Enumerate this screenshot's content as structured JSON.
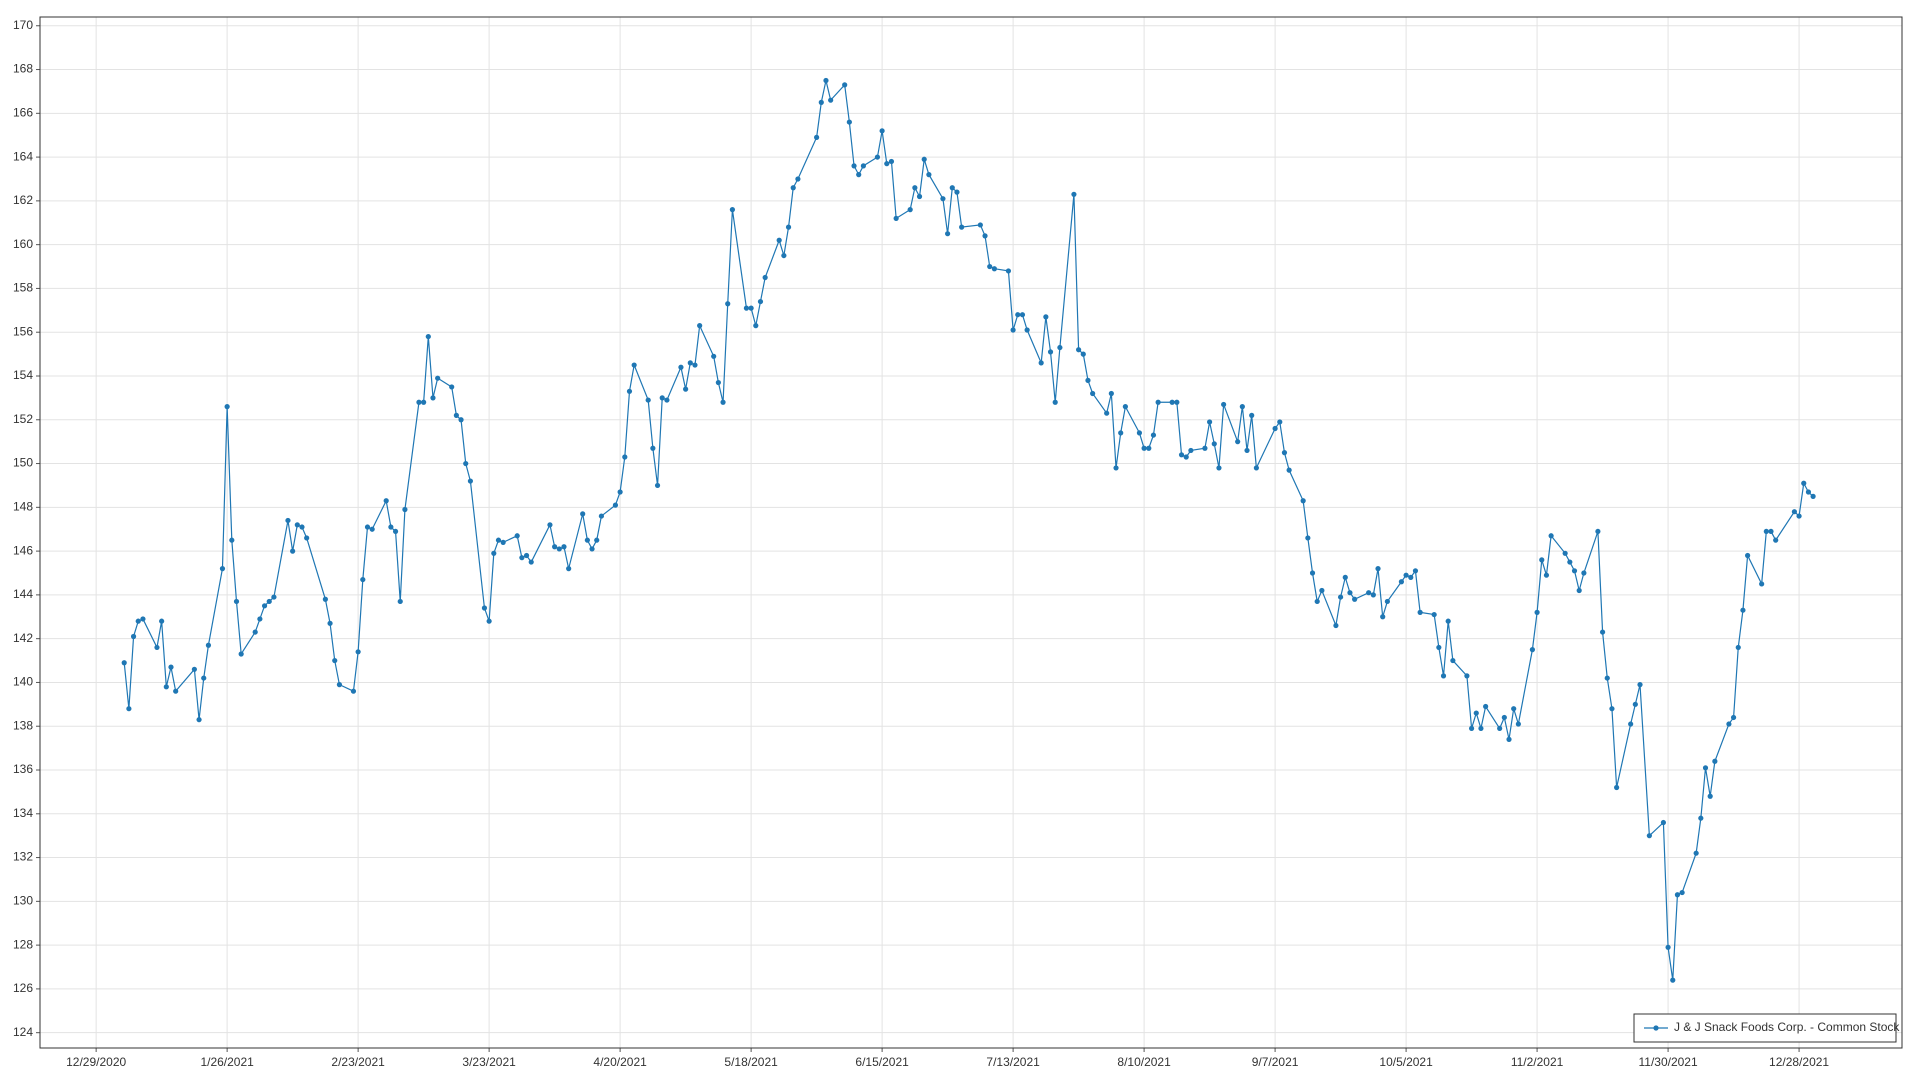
{
  "chart_data": {
    "type": "line",
    "x": [
      "1/4/2021",
      "1/5/2021",
      "1/6/2021",
      "1/7/2021",
      "1/8/2021",
      "1/11/2021",
      "1/12/2021",
      "1/13/2021",
      "1/14/2021",
      "1/15/2021",
      "1/19/2021",
      "1/20/2021",
      "1/21/2021",
      "1/22/2021",
      "1/25/2021",
      "1/26/2021",
      "1/27/2021",
      "1/28/2021",
      "1/29/2021",
      "2/1/2021",
      "2/2/2021",
      "2/3/2021",
      "2/4/2021",
      "2/5/2021",
      "2/8/2021",
      "2/9/2021",
      "2/10/2021",
      "2/11/2021",
      "2/12/2021",
      "2/16/2021",
      "2/17/2021",
      "2/18/2021",
      "2/19/2021",
      "2/22/2021",
      "2/23/2021",
      "2/24/2021",
      "2/25/2021",
      "2/26/2021",
      "3/1/2021",
      "3/2/2021",
      "3/3/2021",
      "3/4/2021",
      "3/5/2021",
      "3/8/2021",
      "3/9/2021",
      "3/10/2021",
      "3/11/2021",
      "3/12/2021",
      "3/15/2021",
      "3/16/2021",
      "3/17/2021",
      "3/18/2021",
      "3/19/2021",
      "3/22/2021",
      "3/23/2021",
      "3/24/2021",
      "3/25/2021",
      "3/26/2021",
      "3/29/2021",
      "3/30/2021",
      "3/31/2021",
      "4/1/2021",
      "4/5/2021",
      "4/6/2021",
      "4/7/2021",
      "4/8/2021",
      "4/9/2021",
      "4/12/2021",
      "4/13/2021",
      "4/14/2021",
      "4/15/2021",
      "4/16/2021",
      "4/19/2021",
      "4/20/2021",
      "4/21/2021",
      "4/22/2021",
      "4/23/2021",
      "4/26/2021",
      "4/27/2021",
      "4/28/2021",
      "4/29/2021",
      "4/30/2021",
      "5/3/2021",
      "5/4/2021",
      "5/5/2021",
      "5/6/2021",
      "5/7/2021",
      "5/10/2021",
      "5/11/2021",
      "5/12/2021",
      "5/13/2021",
      "5/14/2021",
      "5/17/2021",
      "5/18/2021",
      "5/19/2021",
      "5/20/2021",
      "5/21/2021",
      "5/24/2021",
      "5/25/2021",
      "5/26/2021",
      "5/27/2021",
      "5/28/2021",
      "6/1/2021",
      "6/2/2021",
      "6/3/2021",
      "6/4/2021",
      "6/7/2021",
      "6/8/2021",
      "6/9/2021",
      "6/10/2021",
      "6/11/2021",
      "6/14/2021",
      "6/15/2021",
      "6/16/2021",
      "6/17/2021",
      "6/18/2021",
      "6/21/2021",
      "6/22/2021",
      "6/23/2021",
      "6/24/2021",
      "6/25/2021",
      "6/28/2021",
      "6/29/2021",
      "6/30/2021",
      "7/1/2021",
      "7/2/2021",
      "7/6/2021",
      "7/7/2021",
      "7/8/2021",
      "7/9/2021",
      "7/12/2021",
      "7/13/2021",
      "7/14/2021",
      "7/15/2021",
      "7/16/2021",
      "7/19/2021",
      "7/20/2021",
      "7/21/2021",
      "7/22/2021",
      "7/23/2021",
      "7/26/2021",
      "7/27/2021",
      "7/28/2021",
      "7/29/2021",
      "7/30/2021",
      "8/2/2021",
      "8/3/2021",
      "8/4/2021",
      "8/5/2021",
      "8/6/2021",
      "8/9/2021",
      "8/10/2021",
      "8/11/2021",
      "8/12/2021",
      "8/13/2021",
      "8/16/2021",
      "8/17/2021",
      "8/18/2021",
      "8/19/2021",
      "8/20/2021",
      "8/23/2021",
      "8/24/2021",
      "8/25/2021",
      "8/26/2021",
      "8/27/2021",
      "8/30/2021",
      "8/31/2021",
      "9/1/2021",
      "9/2/2021",
      "9/3/2021",
      "9/7/2021",
      "9/8/2021",
      "9/9/2021",
      "9/10/2021",
      "9/13/2021",
      "9/14/2021",
      "9/15/2021",
      "9/16/2021",
      "9/17/2021",
      "9/20/2021",
      "9/21/2021",
      "9/22/2021",
      "9/23/2021",
      "9/24/2021",
      "9/27/2021",
      "9/28/2021",
      "9/29/2021",
      "9/30/2021",
      "10/1/2021",
      "10/4/2021",
      "10/5/2021",
      "10/6/2021",
      "10/7/2021",
      "10/8/2021",
      "10/11/2021",
      "10/12/2021",
      "10/13/2021",
      "10/14/2021",
      "10/15/2021",
      "10/18/2021",
      "10/19/2021",
      "10/20/2021",
      "10/21/2021",
      "10/22/2021",
      "10/25/2021",
      "10/26/2021",
      "10/27/2021",
      "10/28/2021",
      "10/29/2021",
      "11/1/2021",
      "11/2/2021",
      "11/3/2021",
      "11/4/2021",
      "11/5/2021",
      "11/8/2021",
      "11/9/2021",
      "11/10/2021",
      "11/11/2021",
      "11/12/2021",
      "11/15/2021",
      "11/16/2021",
      "11/17/2021",
      "11/18/2021",
      "11/19/2021",
      "11/22/2021",
      "11/23/2021",
      "11/24/2021",
      "11/26/2021",
      "11/29/2021",
      "11/30/2021",
      "12/1/2021",
      "12/2/2021",
      "12/3/2021",
      "12/6/2021",
      "12/7/2021",
      "12/8/2021",
      "12/9/2021",
      "12/10/2021",
      "12/13/2021",
      "12/14/2021",
      "12/15/2021",
      "12/16/2021",
      "12/17/2021",
      "12/20/2021",
      "12/21/2021",
      "12/22/2021",
      "12/23/2021",
      "12/27/2021",
      "12/28/2021",
      "12/29/2021",
      "12/30/2021",
      "12/31/2021"
    ],
    "series": [
      {
        "name": "J & J Snack Foods Corp. - Common Stock",
        "color": "#1f77b4",
        "values": [
          140.9,
          138.8,
          142.1,
          142.8,
          142.9,
          141.6,
          142.8,
          139.8,
          140.7,
          139.6,
          140.6,
          138.3,
          140.2,
          141.7,
          145.2,
          152.6,
          146.5,
          143.7,
          141.3,
          142.3,
          142.9,
          143.5,
          143.7,
          143.9,
          147.4,
          146.0,
          147.2,
          147.1,
          146.6,
          143.8,
          142.7,
          141.0,
          139.9,
          139.6,
          141.4,
          144.7,
          147.1,
          147.0,
          148.3,
          147.1,
          146.9,
          143.7,
          147.9,
          152.8,
          152.8,
          155.8,
          153.0,
          153.9,
          153.5,
          152.2,
          152.0,
          150.0,
          149.2,
          143.4,
          142.8,
          145.9,
          146.5,
          146.4,
          146.7,
          145.7,
          145.8,
          145.5,
          147.2,
          146.2,
          146.1,
          146.2,
          145.2,
          147.7,
          146.5,
          146.1,
          146.5,
          147.6,
          148.1,
          148.7,
          150.3,
          153.3,
          154.5,
          152.9,
          150.7,
          149.0,
          153.0,
          152.9,
          154.4,
          153.4,
          154.6,
          154.5,
          156.3,
          154.9,
          153.7,
          152.8,
          157.3,
          161.6,
          157.1,
          157.1,
          156.3,
          157.4,
          158.5,
          160.2,
          159.5,
          160.8,
          162.6,
          163.0,
          164.9,
          166.5,
          167.5,
          166.6,
          167.3,
          165.6,
          163.6,
          163.2,
          163.6,
          164.0,
          165.2,
          163.7,
          163.8,
          161.2,
          161.6,
          162.6,
          162.2,
          163.9,
          163.2,
          162.1,
          160.5,
          162.6,
          162.4,
          160.8,
          160.9,
          160.4,
          159.0,
          158.9,
          158.8,
          156.1,
          156.8,
          156.8,
          156.1,
          154.6,
          156.7,
          155.1,
          152.8,
          155.3,
          162.3,
          155.2,
          155.0,
          153.8,
          153.2,
          152.3,
          153.2,
          149.8,
          151.4,
          152.6,
          151.4,
          150.7,
          150.7,
          151.3,
          152.8,
          152.8,
          152.8,
          150.4,
          150.3,
          150.6,
          150.7,
          151.9,
          150.9,
          149.8,
          152.7,
          151.0,
          152.6,
          150.6,
          152.2,
          149.8,
          151.6,
          151.9,
          150.5,
          149.7,
          148.3,
          146.6,
          145.0,
          143.7,
          144.2,
          142.6,
          143.9,
          144.8,
          144.1,
          143.8,
          144.1,
          144.0,
          145.2,
          143.0,
          143.7,
          144.6,
          144.9,
          144.8,
          145.1,
          143.2,
          143.1,
          141.6,
          140.3,
          142.8,
          141.0,
          140.3,
          137.9,
          138.6,
          137.9,
          138.9,
          137.9,
          138.4,
          137.4,
          138.8,
          138.1,
          141.5,
          143.2,
          145.6,
          144.9,
          146.7,
          145.9,
          145.5,
          145.1,
          144.2,
          145.0,
          146.9,
          142.3,
          140.2,
          138.8,
          135.2,
          138.1,
          139.0,
          139.9,
          133.0,
          133.6,
          127.9,
          126.4,
          130.3,
          130.4,
          132.2,
          133.8,
          136.1,
          134.8,
          136.4,
          138.1,
          138.4,
          141.6,
          143.3,
          145.8,
          144.5,
          146.9,
          146.9,
          146.5,
          147.8,
          147.6,
          149.1,
          148.7,
          148.5
        ]
      }
    ],
    "xlim": [
      "12/17/2020",
      "1/19/2022"
    ],
    "xticks": [
      "12/29/2020",
      "1/26/2021",
      "2/23/2021",
      "3/23/2021",
      "4/20/2021",
      "5/18/2021",
      "6/15/2021",
      "7/13/2021",
      "8/10/2021",
      "9/7/2021",
      "10/5/2021",
      "11/2/2021",
      "11/30/2021",
      "12/28/2021"
    ],
    "ylim": [
      123.3,
      170.4
    ],
    "yticks": [
      124,
      126,
      128,
      130,
      132,
      134,
      136,
      138,
      140,
      142,
      144,
      146,
      148,
      150,
      152,
      154,
      156,
      158,
      160,
      162,
      164,
      166,
      168,
      170
    ],
    "grid": true,
    "legend": "lower right"
  }
}
